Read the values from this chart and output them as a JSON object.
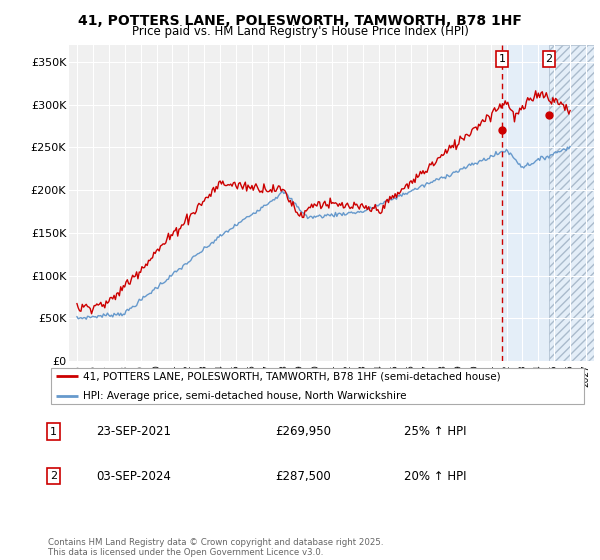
{
  "title": "41, POTTERS LANE, POLESWORTH, TAMWORTH, B78 1HF",
  "subtitle": "Price paid vs. HM Land Registry's House Price Index (HPI)",
  "legend_line1": "41, POTTERS LANE, POLESWORTH, TAMWORTH, B78 1HF (semi-detached house)",
  "legend_line2": "HPI: Average price, semi-detached house, North Warwickshire",
  "annotation1_date": "23-SEP-2021",
  "annotation1_price": "£269,950",
  "annotation1_hpi": "25% ↑ HPI",
  "annotation2_date": "03-SEP-2024",
  "annotation2_price": "£287,500",
  "annotation2_hpi": "20% ↑ HPI",
  "footer": "Contains HM Land Registry data © Crown copyright and database right 2025.\nThis data is licensed under the Open Government Licence v3.0.",
  "red_color": "#cc0000",
  "blue_color": "#6699cc",
  "chart_bg": "#f0f0f0",
  "sale1_x": 2021.73,
  "sale1_y": 269950,
  "sale2_x": 2024.67,
  "sale2_y": 287500,
  "xmin": 1994.5,
  "xmax": 2027.5,
  "ymin": 0,
  "ymax": 370000,
  "yticks": [
    0,
    50000,
    100000,
    150000,
    200000,
    250000,
    300000,
    350000
  ],
  "ytick_labels": [
    "£0",
    "£50K",
    "£100K",
    "£150K",
    "£200K",
    "£250K",
    "£300K",
    "£350K"
  ]
}
